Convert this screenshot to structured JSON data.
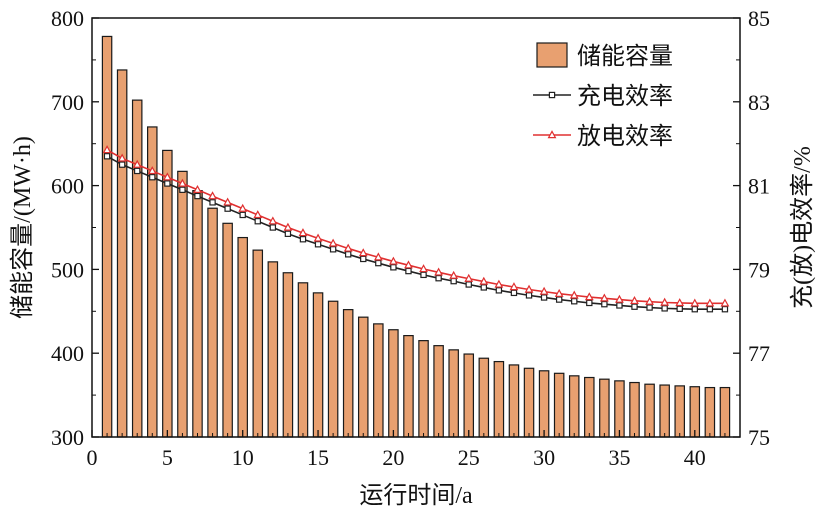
{
  "chart_data": {
    "type": "bar+line",
    "x": [
      1,
      2,
      3,
      4,
      5,
      6,
      7,
      8,
      9,
      10,
      11,
      12,
      13,
      14,
      15,
      16,
      17,
      18,
      19,
      20,
      21,
      22,
      23,
      24,
      25,
      26,
      27,
      28,
      29,
      30,
      31,
      32,
      33,
      34,
      35,
      36,
      37,
      38,
      39,
      40,
      41,
      42
    ],
    "xlabel": "运行时间/a",
    "xlim": [
      0,
      43
    ],
    "xticks": [
      0,
      5,
      10,
      15,
      20,
      25,
      30,
      35,
      40
    ],
    "ylabel_left": "储能容量/(MW·h)",
    "ylim_left": [
      300,
      800
    ],
    "yticks_left": [
      300,
      400,
      500,
      600,
      700,
      800
    ],
    "ylabel_right": "充(放)电效率/%",
    "ylim_right": [
      75,
      85
    ],
    "yticks_right": [
      75,
      77,
      79,
      81,
      83,
      85
    ],
    "legend_position": "top-right",
    "grid": false,
    "series": [
      {
        "name": "储能容量",
        "type": "bar",
        "axis": "left",
        "color": "#E8A070",
        "values": [
          778,
          738,
          702,
          670,
          642,
          617,
          594,
          573,
          555,
          538,
          523,
          509,
          496,
          484,
          472,
          462,
          452,
          443,
          435,
          428,
          421,
          415,
          409,
          404,
          399,
          394,
          390,
          386,
          382,
          379,
          376,
          373,
          371,
          369,
          367,
          365,
          363,
          362,
          361,
          360,
          359,
          359
        ]
      },
      {
        "name": "充电效率",
        "type": "line",
        "axis": "right",
        "color": "#222222",
        "marker": "square",
        "values": [
          81.7,
          81.5,
          81.35,
          81.2,
          81.05,
          80.9,
          80.75,
          80.6,
          80.45,
          80.3,
          80.15,
          80.0,
          79.85,
          79.72,
          79.6,
          79.48,
          79.36,
          79.25,
          79.15,
          79.05,
          78.96,
          78.87,
          78.79,
          78.72,
          78.64,
          78.57,
          78.5,
          78.44,
          78.38,
          78.33,
          78.28,
          78.24,
          78.2,
          78.17,
          78.14,
          78.11,
          78.09,
          78.07,
          78.06,
          78.05,
          78.05,
          78.05
        ]
      },
      {
        "name": "放电效率",
        "type": "line",
        "axis": "right",
        "color": "#E03030",
        "marker": "triangle",
        "values": [
          81.85,
          81.65,
          81.5,
          81.35,
          81.2,
          81.05,
          80.9,
          80.75,
          80.6,
          80.45,
          80.3,
          80.15,
          80.0,
          79.87,
          79.74,
          79.62,
          79.5,
          79.39,
          79.29,
          79.19,
          79.1,
          79.01,
          78.93,
          78.85,
          78.78,
          78.71,
          78.64,
          78.58,
          78.52,
          78.47,
          78.42,
          78.38,
          78.34,
          78.31,
          78.28,
          78.25,
          78.23,
          78.21,
          78.2,
          78.19,
          78.19,
          78.19
        ]
      }
    ]
  }
}
